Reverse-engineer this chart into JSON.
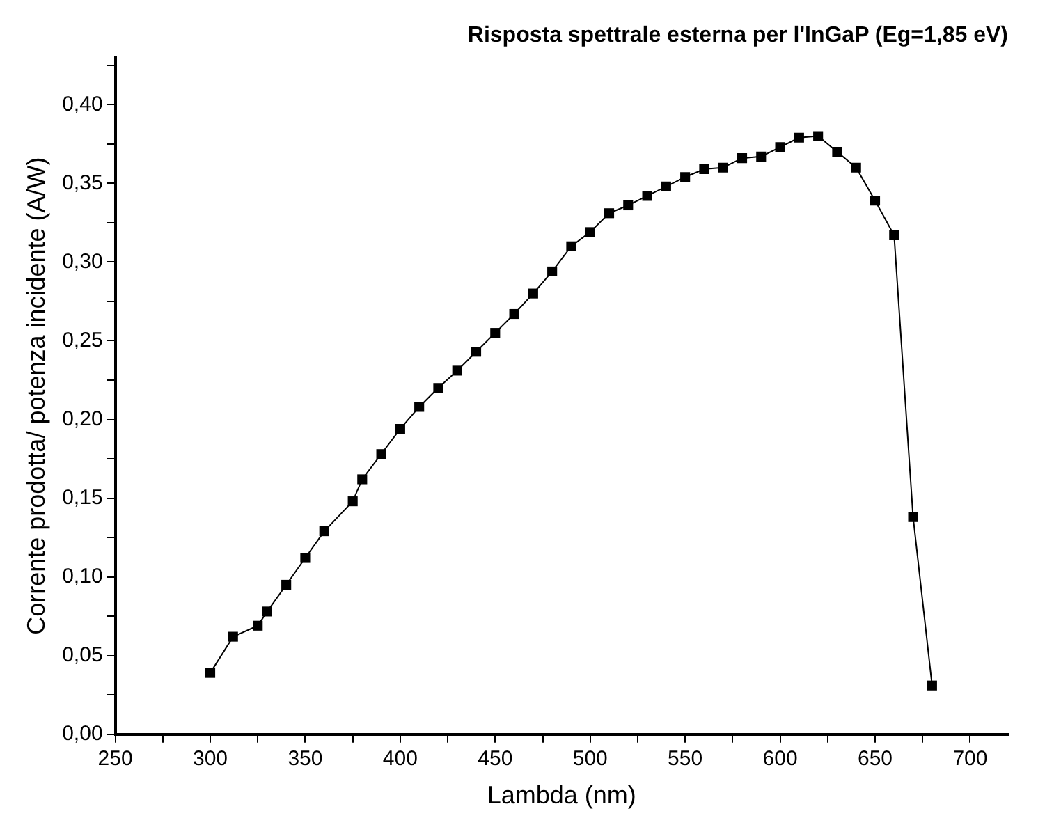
{
  "chart_data": {
    "type": "line",
    "title": "Risposta spettrale esterna per l'InGaP (Eg=1,85 eV)",
    "xlabel": "Lambda (nm)",
    "ylabel": "Corrente prodotta/ potenza incidente (A/W)",
    "x": [
      300,
      312,
      325,
      330,
      340,
      350,
      360,
      375,
      380,
      390,
      400,
      410,
      420,
      430,
      440,
      450,
      460,
      470,
      480,
      490,
      500,
      510,
      520,
      530,
      540,
      550,
      560,
      570,
      580,
      590,
      600,
      610,
      620,
      630,
      640,
      650,
      660,
      670,
      680
    ],
    "series": [
      {
        "color": "#000000",
        "values": [
          0.039,
          0.062,
          0.069,
          0.078,
          0.095,
          0.112,
          0.129,
          0.148,
          0.162,
          0.178,
          0.194,
          0.208,
          0.22,
          0.231,
          0.243,
          0.255,
          0.267,
          0.28,
          0.294,
          0.31,
          0.319,
          0.331,
          0.336,
          0.342,
          0.348,
          0.354,
          0.359,
          0.36,
          0.366,
          0.367,
          0.373,
          0.379,
          0.38,
          0.37,
          0.36,
          0.339,
          0.317,
          0.138,
          0.031
        ]
      }
    ],
    "xlim": [
      250,
      720
    ],
    "xticks": [
      250,
      {
        "value": 275,
        "label": null
      },
      300,
      {
        "value": 325,
        "label": null
      },
      350,
      {
        "value": 375,
        "label": null
      },
      400,
      {
        "value": 425,
        "label": null
      },
      450,
      {
        "value": 475,
        "label": null
      },
      500,
      {
        "value": 525,
        "label": null
      },
      550,
      {
        "value": 575,
        "label": null
      },
      600,
      {
        "value": 625,
        "label": null
      },
      650,
      {
        "value": 675,
        "label": null
      },
      700
    ],
    "ylim": [
      0,
      0.43
    ],
    "yticks": [
      {
        "value": 0,
        "label": "0,00"
      },
      {
        "value": 0.025,
        "label": null
      },
      {
        "value": 0.05,
        "label": "0,05"
      },
      {
        "value": 0.075,
        "label": null
      },
      {
        "value": 0.1,
        "label": "0,10"
      },
      {
        "value": 0.125,
        "label": null
      },
      {
        "value": 0.15,
        "label": "0,15"
      },
      {
        "value": 0.175,
        "label": null
      },
      {
        "value": 0.2,
        "label": "0,20"
      },
      {
        "value": 0.225,
        "label": null
      },
      {
        "value": 0.25,
        "label": "0,25"
      },
      {
        "value": 0.275,
        "label": null
      },
      {
        "value": 0.3,
        "label": "0,30"
      },
      {
        "value": 0.325,
        "label": null
      },
      {
        "value": 0.35,
        "label": "0,35"
      },
      {
        "value": 0.375,
        "label": null
      },
      {
        "value": 0.4,
        "label": "0,40"
      },
      {
        "value": 0.425,
        "label": null
      }
    ],
    "grid": false,
    "legend": false,
    "marker": "square",
    "line_style": "solid"
  }
}
